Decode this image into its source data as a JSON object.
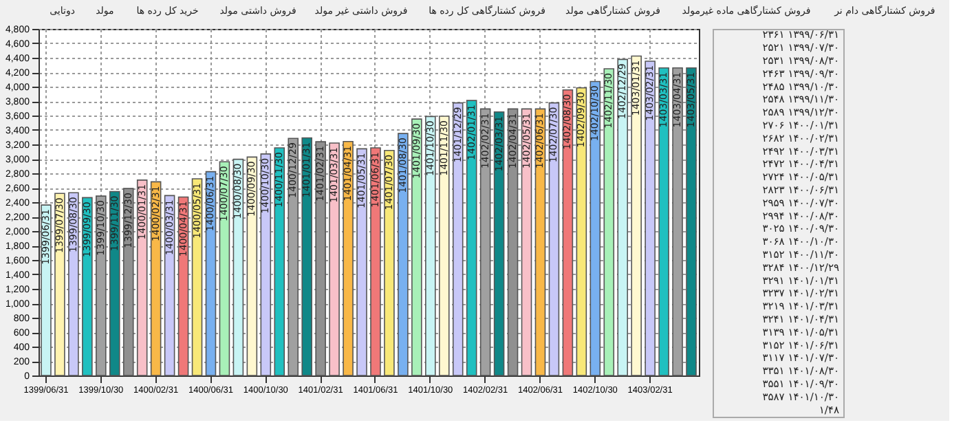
{
  "chart_data": [
    {
      "type": "other",
      "annotations": [
        "دوتایی",
        "مولد",
        "خرید کل رده ها",
        "فروش داشتی مولد",
        "فروش داشتی غیر مولد",
        "فروش کشتارگاهی کل رده ها",
        "فروش کشتارگاهی مولد",
        "فروش کشتارگاهی ماده غیرمولد",
        "فروش کشتارگاهی دام نر"
      ]
    },
    {
      "type": "bar",
      "categories": [
        "1399/06/31",
        null,
        null,
        null,
        "1399/10/30",
        null,
        null,
        null,
        "1400/02/31",
        null,
        null,
        null,
        "1400/06/31",
        null,
        null,
        null,
        "1400/10/30",
        null,
        null,
        null,
        "1401/02/31",
        null,
        null,
        null,
        "1401/06/31",
        null,
        null,
        null,
        "1401/10/30",
        null,
        null,
        null,
        "1402/02/31",
        null,
        null,
        null,
        "1402/06/31",
        null,
        null,
        null,
        "1402/10/30",
        null,
        null,
        null,
        "1403/02/31",
        null,
        null,
        null
      ],
      "values": [
        2361,
        2521,
        2531,
        2463,
        2485,
        2548,
        2589,
        2706,
        2682,
        2492,
        2472,
        2724,
        2823,
        2959,
        2994,
        3025,
        3068,
        3152,
        3284,
        3291,
        3237,
        3219,
        3241,
        3139,
        3152,
        3117,
        3351,
        3551,
        3587,
        3590,
        3775,
        3808,
        3692,
        3650,
        3692,
        3692,
        3692,
        3775,
        3955,
        3984,
        4072,
        4248,
        4377,
        4424,
        4353,
        4260,
        4260,
        4260
      ],
      "colors": [
        "#c8f4f4",
        "#fff3b0",
        "#c8c8f8",
        "#20c0c0",
        "#a0a0a0",
        "#108888",
        "#909090",
        "#f8c0c8",
        "#f8b848",
        "#c8c8f8",
        "#f07878",
        "#f8e878",
        "#78b0f0",
        "#a8f0b8",
        "#c8f4f4",
        "#fff8d0",
        "#c8c8f8",
        "#20c0c0",
        "#a0a0a0",
        "#108888",
        "#909090",
        "#f8c0c8",
        "#f8b848",
        "#c8c8f8",
        "#f07878",
        "#f8e878",
        "#78b0f0",
        "#a8f0b8",
        "#c8f4f4",
        "#fff8d0",
        "#c8c8f8",
        "#20c0c0",
        "#a0a0a0",
        "#108888",
        "#909090",
        "#f8c0c8",
        "#f8b848",
        "#c8c8f8",
        "#f07878",
        "#f8e878",
        "#78b0f0",
        "#a8f0b8",
        "#c8f4f4",
        "#fff8d0",
        "#c8c8f8",
        "#20c0c0",
        "#a0a0a0",
        "#108888"
      ],
      "value_labels": [
        "1399/06/31",
        "1399/07/30",
        "1399/08/30",
        "1399/09/30",
        "1399/10/30",
        "1399/11/30",
        "1399/12/30",
        "1400/01/31",
        "1400/02/31",
        "1400/03/31",
        "1400/04/31",
        "1400/05/31",
        "1400/06/31",
        "1400/07/30",
        "1400/08/30",
        "1400/09/30",
        "1400/10/30",
        "1400/11/30",
        "1400/12/29",
        "1401/01/31",
        "1401/02/31",
        "1401/03/31",
        "1401/04/31",
        "1401/05/31",
        "1401/06/31",
        "1401/07/30",
        "1401/08/30",
        "1401/09/30",
        "1401/10/30",
        "1401/11/30",
        "1401/12/29",
        "1402/01/31",
        "1402/02/31",
        "1402/03/31",
        "1402/04/31",
        "1402/05/31",
        "1402/06/31",
        "1402/07/30",
        "1402/08/30",
        "1402/09/30",
        "1402/10/30",
        "1402/11/30",
        "1402/12/29",
        "1403/01/31",
        "1403/02/31",
        "1403/03/31",
        "1403/04/31",
        "1403/05/31"
      ],
      "ylim": [
        0,
        4800
      ],
      "yticks": [
        0,
        200,
        400,
        600,
        800,
        {
          "value": 1000,
          "label": "1,000"
        },
        {
          "value": 1200,
          "label": "1,200"
        },
        {
          "value": 1400,
          "label": "1,400"
        },
        {
          "value": 1600,
          "label": "1,600"
        },
        {
          "value": 1800,
          "label": "1,800"
        },
        {
          "value": 2000,
          "label": "2,000"
        },
        {
          "value": 2200,
          "label": "2,200"
        },
        {
          "value": 2400,
          "label": "2,400"
        },
        {
          "value": 2600,
          "label": "2,600"
        },
        {
          "value": 2800,
          "label": "2,800"
        },
        {
          "value": 3000,
          "label": "3,000"
        },
        {
          "value": 3200,
          "label": "3,200"
        },
        {
          "value": 3400,
          "label": "3,400"
        },
        {
          "value": 3600,
          "label": "3,600"
        },
        {
          "value": 3800,
          "label": "3,800"
        },
        {
          "value": 4000,
          "label": "4,000"
        },
        {
          "value": 4200,
          "label": "4,200"
        },
        {
          "value": 4400,
          "label": "4,400"
        },
        {
          "value": 4600,
          "label": "4,600"
        },
        {
          "value": 4800,
          "label": "4,800"
        }
      ],
      "grid": true
    },
    {
      "type": "other",
      "annotations": [
        "۲۳۶۱  ۱۳۹۹/۰۶/۳۱",
        "۲۵۲۱  ۱۳۹۹/۰۷/۳۰",
        "۲۵۳۱  ۱۳۹۹/۰۸/۳۰",
        "۲۴۶۳  ۱۳۹۹/۰۹/۳۰",
        "۲۴۸۵  ۱۳۹۹/۱۰/۳۰",
        "۲۵۴۸  ۱۳۹۹/۱۱/۳۰",
        "۲۵۸۹  ۱۳۹۹/۱۲/۳۰",
        "۲۷۰۶  ۱۴۰۰/۰۱/۳۱",
        "۲۶۸۲  ۱۴۰۰/۰۲/۳۱",
        "۲۴۹۲  ۱۴۰۰/۰۳/۳۱",
        "۲۴۷۲  ۱۴۰۰/۰۴/۳۱",
        "۲۷۲۴  ۱۴۰۰/۰۵/۳۱",
        "۲۸۲۳  ۱۴۰۰/۰۶/۳۱",
        "۲۹۵۹  ۱۴۰۰/۰۷/۳۰",
        "۲۹۹۴  ۱۴۰۰/۰۸/۳۰",
        "۳۰۲۵  ۱۴۰۰/۰۹/۳۰",
        "۳۰۶۸  ۱۴۰۰/۱۰/۳۰",
        "۳۱۵۲  ۱۴۰۰/۱۱/۳۰",
        "۳۲۸۴  ۱۴۰۰/۱۲/۲۹",
        "۳۲۹۱  ۱۴۰۱/۰۱/۳۱",
        "۳۲۳۷  ۱۴۰۱/۰۲/۳۱",
        "۳۲۱۹  ۱۴۰۱/۰۳/۳۱",
        "۳۲۴۱  ۱۴۰۱/۰۴/۳۱",
        "۳۱۳۹  ۱۴۰۱/۰۵/۳۱",
        "۳۱۵۲  ۱۴۰۱/۰۶/۳۱",
        "۳۱۱۷  ۱۴۰۱/۰۷/۳۰",
        "۳۳۵۱  ۱۴۰۱/۰۸/۳۰",
        "۳۵۵۱  ۱۴۰۱/۰۹/۳۰",
        "۳۵۸۷  ۱۴۰۱/۱۰/۳۰",
        "۱/۴۸"
      ]
    }
  ]
}
